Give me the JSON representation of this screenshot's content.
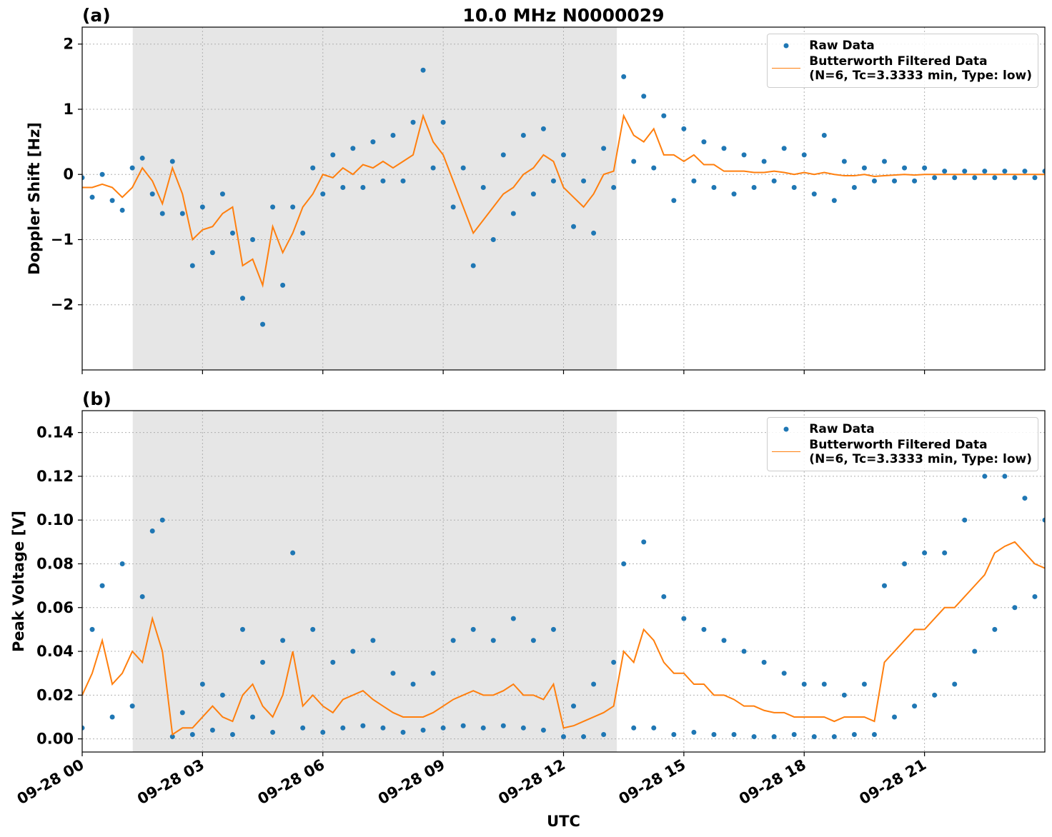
{
  "chart_data": [
    {
      "type": "scatter-line",
      "panel_label": "(a)",
      "title": "10.0 MHz N0000029",
      "ylabel": "Doppler Shift [Hz]",
      "xlim": [
        0,
        24
      ],
      "xticks": [
        0,
        3,
        6,
        9,
        12,
        15,
        18,
        21
      ],
      "ylim": [
        -3.0,
        2.26
      ],
      "yticks": [
        {
          "value": -2,
          "label": "−2"
        },
        {
          "value": -1,
          "label": "−1"
        },
        0,
        1,
        2
      ],
      "grid": true,
      "legend": "upper right",
      "shade": [
        1.26,
        13.33
      ],
      "x": [
        0,
        0.25,
        0.5,
        0.75,
        1,
        1.25,
        1.5,
        1.75,
        2,
        2.25,
        2.5,
        2.75,
        3,
        3.25,
        3.5,
        3.75,
        4,
        4.25,
        4.5,
        4.75,
        5,
        5.25,
        5.5,
        5.75,
        6,
        6.25,
        6.5,
        6.75,
        7,
        7.25,
        7.5,
        7.75,
        8,
        8.25,
        8.5,
        8.75,
        9,
        9.25,
        9.5,
        9.75,
        10,
        10.25,
        10.5,
        10.75,
        11,
        11.25,
        11.5,
        11.75,
        12,
        12.25,
        12.5,
        12.75,
        13,
        13.25,
        13.5,
        13.75,
        14,
        14.25,
        14.5,
        14.75,
        15,
        15.25,
        15.5,
        15.75,
        16,
        16.25,
        16.5,
        16.75,
        17,
        17.25,
        17.5,
        17.75,
        18,
        18.25,
        18.5,
        18.75,
        19,
        19.25,
        19.5,
        19.75,
        20,
        20.25,
        20.5,
        20.75,
        21,
        21.25,
        21.5,
        21.75,
        22,
        22.25,
        22.5,
        22.75,
        23,
        23.25,
        23.5,
        23.75,
        24
      ],
      "series": [
        {
          "name": "Raw Data",
          "color": "#1f77b4",
          "mark": "dot",
          "values": [
            -0.05,
            -0.35,
            0.0,
            -0.4,
            -0.55,
            0.1,
            0.25,
            -0.3,
            -0.6,
            0.2,
            -0.6,
            -1.4,
            -0.5,
            -1.2,
            -0.3,
            -0.9,
            -1.9,
            -1.0,
            -2.3,
            -0.5,
            -1.7,
            -0.5,
            -0.9,
            0.1,
            -0.3,
            0.3,
            -0.2,
            0.4,
            -0.2,
            0.5,
            -0.1,
            0.6,
            -0.1,
            0.8,
            1.6,
            0.1,
            0.8,
            -0.5,
            0.1,
            -1.4,
            -0.2,
            -1.0,
            0.3,
            -0.6,
            0.6,
            -0.3,
            0.7,
            -0.1,
            0.3,
            -0.8,
            -0.1,
            -0.9,
            0.4,
            -0.2,
            1.5,
            0.2,
            1.2,
            0.1,
            0.9,
            -0.4,
            0.7,
            -0.1,
            0.5,
            -0.2,
            0.4,
            -0.3,
            0.3,
            -0.2,
            0.2,
            -0.1,
            0.4,
            -0.2,
            0.3,
            -0.3,
            0.6,
            -0.4,
            0.2,
            -0.2,
            0.1,
            -0.1,
            0.2,
            -0.1,
            0.1,
            -0.1,
            0.1,
            -0.05,
            0.05,
            -0.05,
            0.05,
            -0.05,
            0.05,
            -0.05,
            0.05,
            -0.05,
            0.05,
            -0.05,
            0.05
          ]
        },
        {
          "name": "Butterworth Filtered Data\n(N=6, Tc=3.3333 min, Type: low)",
          "color": "#ff7f0e",
          "mark": "line",
          "values": [
            -0.2,
            -0.2,
            -0.15,
            -0.2,
            -0.35,
            -0.2,
            0.1,
            -0.1,
            -0.45,
            0.1,
            -0.3,
            -1.0,
            -0.85,
            -0.8,
            -0.6,
            -0.5,
            -1.4,
            -1.3,
            -1.7,
            -0.8,
            -1.2,
            -0.9,
            -0.5,
            -0.3,
            0.0,
            -0.05,
            0.1,
            0.0,
            0.15,
            0.1,
            0.2,
            0.1,
            0.2,
            0.3,
            0.9,
            0.5,
            0.3,
            -0.1,
            -0.5,
            -0.9,
            -0.7,
            -0.5,
            -0.3,
            -0.2,
            0.0,
            0.1,
            0.3,
            0.2,
            -0.2,
            -0.35,
            -0.5,
            -0.3,
            0.0,
            0.05,
            0.9,
            0.6,
            0.5,
            0.7,
            0.3,
            0.3,
            0.2,
            0.3,
            0.15,
            0.15,
            0.05,
            0.05,
            0.05,
            0.03,
            0.03,
            0.05,
            0.03,
            0.0,
            0.03,
            0.0,
            0.03,
            0.0,
            -0.02,
            -0.02,
            0.0,
            -0.03,
            -0.02,
            -0.01,
            0.0,
            -0.01,
            0.0,
            0.0,
            0.0,
            0.0,
            0.0,
            0.0,
            0.0,
            0.0,
            0.0,
            0.0,
            0.0,
            0.0,
            0.0
          ]
        }
      ]
    },
    {
      "type": "scatter-line",
      "panel_label": "(b)",
      "ylabel": "Peak Voltage [V]",
      "xlabel": "UTC",
      "xlim": [
        0,
        24
      ],
      "xticks": [
        {
          "value": 0,
          "label": "09-28 00"
        },
        {
          "value": 3,
          "label": "09-28 03"
        },
        {
          "value": 6,
          "label": "09-28 06"
        },
        {
          "value": 9,
          "label": "09-28 09"
        },
        {
          "value": 12,
          "label": "09-28 12"
        },
        {
          "value": 15,
          "label": "09-28 15"
        },
        {
          "value": 18,
          "label": "09-28 18"
        },
        {
          "value": 21,
          "label": "09-28 21"
        }
      ],
      "ylim": [
        -0.006,
        0.15
      ],
      "yticks": [
        {
          "value": 0,
          "label": "0.00"
        },
        {
          "value": 0.02,
          "label": "0.02"
        },
        {
          "value": 0.04,
          "label": "0.04"
        },
        {
          "value": 0.06,
          "label": "0.06"
        },
        {
          "value": 0.08,
          "label": "0.08"
        },
        {
          "value": 0.1,
          "label": "0.10"
        },
        {
          "value": 0.12,
          "label": "0.12"
        },
        {
          "value": 0.14,
          "label": "0.14"
        }
      ],
      "grid": true,
      "legend": "upper right",
      "shade": [
        1.26,
        13.33
      ],
      "x": [
        0,
        0.25,
        0.5,
        0.75,
        1,
        1.25,
        1.5,
        1.75,
        2,
        2.25,
        2.5,
        2.75,
        3,
        3.25,
        3.5,
        3.75,
        4,
        4.25,
        4.5,
        4.75,
        5,
        5.25,
        5.5,
        5.75,
        6,
        6.25,
        6.5,
        6.75,
        7,
        7.25,
        7.5,
        7.75,
        8,
        8.25,
        8.5,
        8.75,
        9,
        9.25,
        9.5,
        9.75,
        10,
        10.25,
        10.5,
        10.75,
        11,
        11.25,
        11.5,
        11.75,
        12,
        12.25,
        12.5,
        12.75,
        13,
        13.25,
        13.5,
        13.75,
        14,
        14.25,
        14.5,
        14.75,
        15,
        15.25,
        15.5,
        15.75,
        16,
        16.25,
        16.5,
        16.75,
        17,
        17.25,
        17.5,
        17.75,
        18,
        18.25,
        18.5,
        18.75,
        19,
        19.25,
        19.5,
        19.75,
        20,
        20.25,
        20.5,
        20.75,
        21,
        21.25,
        21.5,
        21.75,
        22,
        22.25,
        22.5,
        22.75,
        23,
        23.25,
        23.5,
        23.75,
        24
      ],
      "series": [
        {
          "name": "Raw Data",
          "color": "#1f77b4",
          "mark": "dot",
          "values": [
            0.005,
            0.05,
            0.07,
            0.01,
            0.08,
            0.015,
            0.065,
            0.095,
            0.1,
            0.001,
            0.012,
            0.002,
            0.025,
            0.004,
            0.02,
            0.002,
            0.05,
            0.01,
            0.035,
            0.003,
            0.045,
            0.085,
            0.005,
            0.05,
            0.003,
            0.035,
            0.005,
            0.04,
            0.006,
            0.045,
            0.005,
            0.03,
            0.003,
            0.025,
            0.004,
            0.03,
            0.005,
            0.045,
            0.006,
            0.05,
            0.005,
            0.045,
            0.006,
            0.055,
            0.005,
            0.045,
            0.004,
            0.05,
            0.001,
            0.015,
            0.001,
            0.025,
            0.002,
            0.035,
            0.08,
            0.005,
            0.09,
            0.005,
            0.065,
            0.002,
            0.055,
            0.003,
            0.05,
            0.002,
            0.045,
            0.002,
            0.04,
            0.001,
            0.035,
            0.001,
            0.03,
            0.002,
            0.025,
            0.001,
            0.025,
            0.001,
            0.02,
            0.002,
            0.025,
            0.002,
            0.07,
            0.01,
            0.08,
            0.015,
            0.085,
            0.02,
            0.085,
            0.025,
            0.1,
            0.04,
            0.12,
            0.05,
            0.12,
            0.06,
            0.11,
            0.065,
            0.1
          ]
        },
        {
          "name": "Butterworth Filtered Data\n(N=6, Tc=3.3333 min, Type: low)",
          "color": "#ff7f0e",
          "mark": "line",
          "values": [
            0.02,
            0.03,
            0.045,
            0.025,
            0.03,
            0.04,
            0.035,
            0.055,
            0.04,
            0.002,
            0.005,
            0.005,
            0.01,
            0.015,
            0.01,
            0.008,
            0.02,
            0.025,
            0.015,
            0.01,
            0.02,
            0.04,
            0.015,
            0.02,
            0.015,
            0.012,
            0.018,
            0.02,
            0.022,
            0.018,
            0.015,
            0.012,
            0.01,
            0.01,
            0.01,
            0.012,
            0.015,
            0.018,
            0.02,
            0.022,
            0.02,
            0.02,
            0.022,
            0.025,
            0.02,
            0.02,
            0.018,
            0.025,
            0.005,
            0.006,
            0.008,
            0.01,
            0.012,
            0.015,
            0.04,
            0.035,
            0.05,
            0.045,
            0.035,
            0.03,
            0.03,
            0.025,
            0.025,
            0.02,
            0.02,
            0.018,
            0.015,
            0.015,
            0.013,
            0.012,
            0.012,
            0.01,
            0.01,
            0.01,
            0.01,
            0.008,
            0.01,
            0.01,
            0.01,
            0.008,
            0.035,
            0.04,
            0.045,
            0.05,
            0.05,
            0.055,
            0.06,
            0.06,
            0.065,
            0.07,
            0.075,
            0.085,
            0.088,
            0.09,
            0.085,
            0.08,
            0.078
          ]
        }
      ]
    }
  ]
}
